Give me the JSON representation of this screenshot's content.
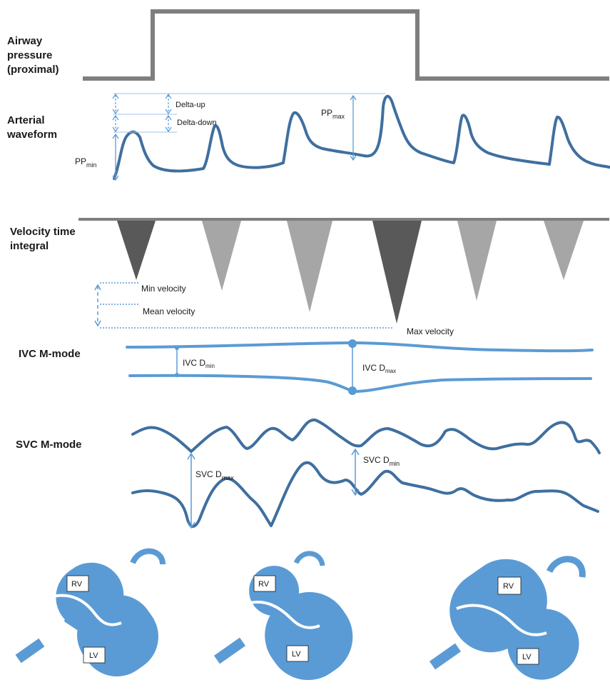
{
  "rows": {
    "airway": [
      "Airway",
      "pressure",
      "(proximal)"
    ],
    "arterial": [
      "Arterial",
      "waveform"
    ],
    "vti": [
      "Velocity time",
      "integral"
    ],
    "ivc": "IVC M-mode",
    "svc": "SVC M-mode"
  },
  "annotations": {
    "delta_up": "Delta-up",
    "delta_down": "Delta-down",
    "pp_max": {
      "main": "PP",
      "sub": "max"
    },
    "pp_min": {
      "main": "PP",
      "sub": "min"
    },
    "min_velocity": "Min velocity",
    "mean_velocity": "Mean velocity",
    "max_velocity": "Max velocity",
    "ivc_dmin": {
      "main": "IVC D",
      "sub": "min"
    },
    "ivc_dmax": {
      "main": "IVC D",
      "sub": "max"
    },
    "svc_dmax": {
      "main": "SVC D",
      "sub": "max"
    },
    "svc_dmin": {
      "main": "SVC D",
      "sub": "min"
    }
  },
  "hearts": [
    {
      "rv": "RV",
      "lv": "LV"
    },
    {
      "rv": "RV",
      "lv": "LV"
    },
    {
      "rv": "RV",
      "lv": "LV"
    }
  ],
  "colors": {
    "wave": "#3f6f9f",
    "blue_fill": "#5b9bd5",
    "gray_line": "#7f7f7f",
    "dark_triangle": "#595959",
    "light_triangle": "#a6a6a6",
    "annotation_blue": "#5b9bd5"
  }
}
